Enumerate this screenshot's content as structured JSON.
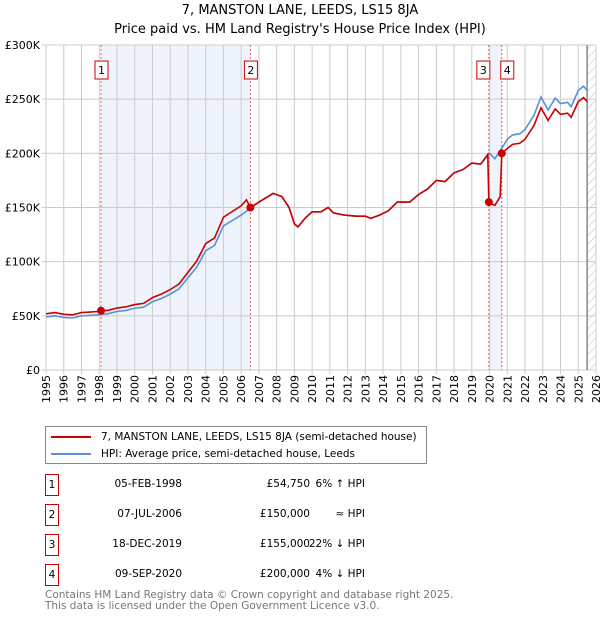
{
  "chart_data": {
    "type": "line",
    "title": "7, MANSTON LANE, LEEDS, LS15 8JA",
    "subtitle": "Price paid vs. HM Land Registry's House Price Index (HPI)",
    "ylim": [
      0,
      300000
    ],
    "xlim": [
      1995,
      2026
    ],
    "yticks": [
      {
        "v": 0,
        "label": "£0"
      },
      {
        "v": 50000,
        "label": "£50K"
      },
      {
        "v": 100000,
        "label": "£100K"
      },
      {
        "v": 150000,
        "label": "£150K"
      },
      {
        "v": 200000,
        "label": "£200K"
      },
      {
        "v": 250000,
        "label": "£250K"
      },
      {
        "v": 300000,
        "label": "£300K"
      }
    ],
    "xticks": [
      "1995",
      "1996",
      "1997",
      "1998",
      "1999",
      "2000",
      "2001",
      "2002",
      "2003",
      "2004",
      "2005",
      "2006",
      "2007",
      "2008",
      "2009",
      "2010",
      "2011",
      "2012",
      "2013",
      "2014",
      "2015",
      "2016",
      "2017",
      "2018",
      "2019",
      "2020",
      "2021",
      "2022",
      "2023",
      "2024",
      "2025",
      "2026"
    ],
    "grid": true,
    "series": [
      {
        "name": "7, MANSTON LANE, LEEDS, LS15 8JA (semi-detached house)",
        "color": "#cc0000",
        "x": [
          1995,
          1995.5,
          1996,
          1996.5,
          1997,
          1997.5,
          1998,
          1998.1,
          1998.5,
          1999,
          1999.5,
          2000,
          2000.5,
          2001,
          2001.5,
          2002,
          2002.5,
          2003,
          2003.5,
          2004,
          2004.5,
          2005,
          2005.5,
          2006,
          2006.3,
          2006.52,
          2007,
          2007.5,
          2007.8,
          2008.3,
          2008.7,
          2009,
          2009.2,
          2009.6,
          2010,
          2010.5,
          2010.9,
          2011.2,
          2011.8,
          2012.5,
          2013,
          2013.3,
          2013.8,
          2014.3,
          2014.8,
          2015.5,
          2016,
          2016.5,
          2017,
          2017.5,
          2018,
          2018.5,
          2019,
          2019.5,
          2019.9,
          2019.96,
          2020.0,
          2020.3,
          2020.6,
          2020.69,
          2021,
          2021.3,
          2021.7,
          2022,
          2022.5,
          2022.9,
          2023.3,
          2023.7,
          2024,
          2024.4,
          2024.6,
          2025,
          2025.3,
          2025.5
        ],
        "y": [
          51900,
          53000,
          51400,
          50900,
          53000,
          53500,
          54100,
          54750,
          55100,
          57200,
          58300,
          60400,
          61500,
          66800,
          70000,
          74200,
          79500,
          90100,
          100700,
          116600,
          121900,
          141000,
          146300,
          151600,
          157000,
          150000,
          155000,
          160000,
          163000,
          160000,
          150000,
          135000,
          132000,
          140000,
          146000,
          146000,
          150000,
          145000,
          143000,
          142000,
          142000,
          140000,
          143000,
          147000,
          155000,
          155000,
          162000,
          167000,
          175000,
          174000,
          182000,
          185000,
          191000,
          190000,
          199000,
          155000,
          154000,
          152000,
          160000,
          200000,
          204500,
          208300,
          209300,
          213000,
          225600,
          242000,
          230400,
          241000,
          236000,
          237000,
          233300,
          247700,
          251500,
          247700
        ]
      },
      {
        "name": "HPI: Average price, semi-detached house, Leeds",
        "color": "#5b8fd6",
        "x": [
          1995,
          1995.5,
          1996,
          1996.5,
          1997,
          1997.5,
          1998,
          1998.5,
          1999,
          1999.5,
          2000,
          2000.5,
          2001,
          2001.5,
          2002,
          2002.5,
          2003,
          2003.5,
          2004,
          2004.5,
          2005,
          2005.5,
          2006,
          2006.5,
          2007,
          2007.5,
          2007.8,
          2008.3,
          2008.7,
          2009,
          2009.2,
          2009.6,
          2010,
          2010.5,
          2010.9,
          2011.2,
          2011.8,
          2012.5,
          2013,
          2013.3,
          2013.8,
          2014.3,
          2014.8,
          2015.5,
          2016,
          2016.5,
          2017,
          2017.5,
          2018,
          2018.5,
          2019,
          2019.5,
          2020,
          2020.3,
          2020.7,
          2021,
          2021.3,
          2021.7,
          2022,
          2022.5,
          2022.9,
          2023.3,
          2023.7,
          2024,
          2024.4,
          2024.6,
          2025,
          2025.3,
          2025.5
        ],
        "y": [
          49000,
          50000,
          48500,
          48000,
          50000,
          50500,
          51000,
          52000,
          54000,
          55000,
          57000,
          58000,
          63000,
          66000,
          70000,
          75000,
          85000,
          95000,
          110000,
          115000,
          133000,
          138000,
          143000,
          149000,
          155000,
          160000,
          163000,
          160000,
          150000,
          135000,
          132000,
          140000,
          146000,
          146000,
          150000,
          145000,
          143000,
          142000,
          142000,
          140000,
          143000,
          147000,
          155000,
          155000,
          162000,
          167000,
          175000,
          174000,
          182000,
          185000,
          191000,
          190000,
          200000,
          195000,
          205000,
          213000,
          217000,
          218000,
          222000,
          235000,
          252000,
          240000,
          251000,
          246000,
          247000,
          243000,
          258000,
          262000,
          258000
        ]
      }
    ],
    "sales": [
      {
        "n": "1",
        "x": 1998.1,
        "y": 54750
      },
      {
        "n": "2",
        "x": 2006.52,
        "y": 150000
      },
      {
        "n": "3",
        "x": 2019.96,
        "y": 155000
      },
      {
        "n": "4",
        "x": 2020.69,
        "y": 200000
      }
    ],
    "shaded": [
      [
        1998.1,
        2006.52
      ],
      [
        2019.96,
        2020.69
      ]
    ],
    "forecast_from": 2025.5
  },
  "legend": {
    "property": "7, MANSTON LANE, LEEDS, LS15 8JA (semi-detached house)",
    "hpi": "HPI: Average price, semi-detached house, Leeds"
  },
  "table": [
    {
      "n": "1",
      "date": "05-FEB-1998",
      "price": "£54,750",
      "hpi": "6% ↑ HPI"
    },
    {
      "n": "2",
      "date": "07-JUL-2006",
      "price": "£150,000",
      "hpi": "≈ HPI"
    },
    {
      "n": "3",
      "date": "18-DEC-2019",
      "price": "£155,000",
      "hpi": "22% ↓ HPI"
    },
    {
      "n": "4",
      "date": "09-SEP-2020",
      "price": "£200,000",
      "hpi": "4% ↓ HPI"
    }
  ],
  "footer": [
    "Contains HM Land Registry data © Crown copyright and database right 2025.",
    "This data is licensed under the Open Government Licence v3.0."
  ]
}
